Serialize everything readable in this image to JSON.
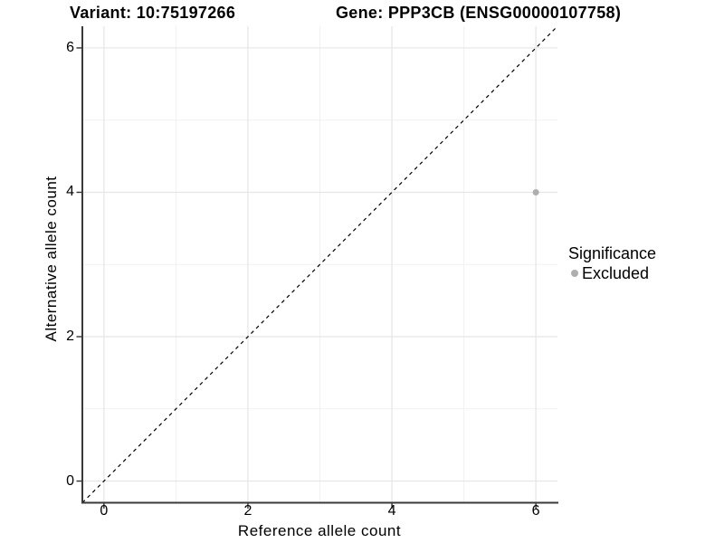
{
  "chart_data": {
    "type": "scatter",
    "titles": {
      "left": "Variant: 10:75197266",
      "right": "Gene: PPP3CB (ENSG00000107758)"
    },
    "xlabel": "Reference allele count",
    "ylabel": "Alternative allele count",
    "xlim": [
      -0.3,
      6.3
    ],
    "ylim": [
      -0.3,
      6.3
    ],
    "x_ticks": [
      0,
      2,
      4,
      6
    ],
    "y_ticks": [
      0,
      2,
      4,
      6
    ],
    "x_minor_gridlines": [
      1,
      3,
      5
    ],
    "y_minor_gridlines": [
      1,
      3,
      5
    ],
    "grid": "major and minor, light gray on white panel",
    "legend": {
      "position": "right",
      "title": "Significance",
      "items": [
        {
          "label": "Excluded",
          "color": "#aeaeae"
        }
      ]
    },
    "series": [
      {
        "name": "Excluded",
        "color": "#aeaeae",
        "points": [
          {
            "x": 6,
            "y": 4
          }
        ]
      }
    ],
    "reference_line": {
      "kind": "identity y = x",
      "style": "dashed",
      "color": "#000000",
      "from": [
        -0.3,
        -0.3
      ],
      "to": [
        6.3,
        6.3
      ]
    }
  },
  "style": {
    "background": "#ffffff",
    "text_color": "#000000",
    "axis_line_color": "#3a3a3a",
    "tick_mark_color": "#333333",
    "major_grid_color": "#e5e5e5",
    "minor_grid_color": "#f1f1f1",
    "point_color": "#aeaeae"
  }
}
